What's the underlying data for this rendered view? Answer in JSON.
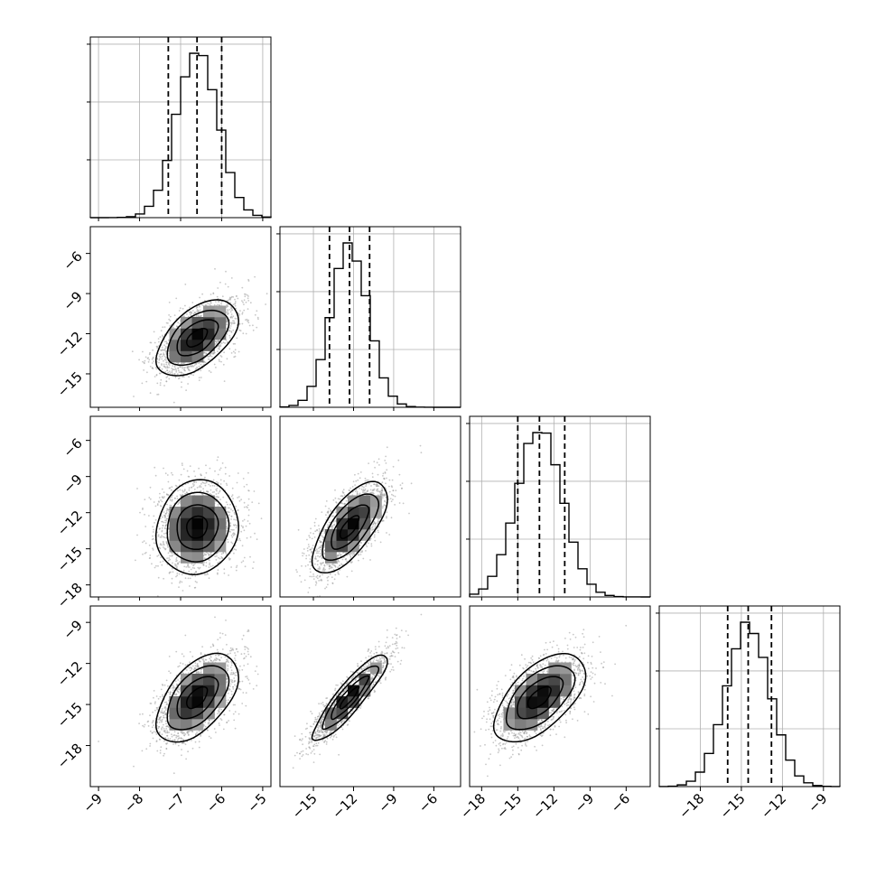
{
  "chart_data": {
    "type": "corner",
    "grid": true,
    "parameters": [
      {
        "range": [
          -9.2,
          -4.8
        ],
        "ticks": [
          -9,
          -8,
          -7,
          -6,
          -5
        ],
        "tick_labels": [
          "−9",
          "−8",
          "−7",
          "−6",
          "−5"
        ],
        "mean": -6.6,
        "sd": 0.5,
        "quantiles": [
          -7.3,
          -6.6,
          -6.0
        ]
      },
      {
        "range": [
          -17.5,
          -4.0
        ],
        "ticks": [
          -15,
          -12,
          -9,
          -6
        ],
        "tick_labels": [
          "−15",
          "−12",
          "−9",
          "−6"
        ],
        "mean": -12.3,
        "sd": 1.4,
        "quantiles": [
          -13.8,
          -12.3,
          -10.8
        ]
      },
      {
        "range": [
          -19.0,
          -4.0
        ],
        "ticks": [
          -18,
          -15,
          -12,
          -9,
          -6
        ],
        "tick_labels": [
          "−18",
          "−15",
          "−12",
          "−9",
          "−6"
        ],
        "mean": -13.2,
        "sd": 1.9,
        "quantiles": [
          -15.0,
          -13.2,
          -11.1
        ]
      },
      {
        "range": [
          -21.0,
          -7.8
        ],
        "ticks": [
          -18,
          -15,
          -12,
          -9
        ],
        "tick_labels": [
          "−18",
          "−15",
          "−12",
          "−9"
        ],
        "mean": -14.5,
        "sd": 1.6,
        "quantiles": [
          -16.0,
          -14.5,
          -12.8
        ]
      }
    ],
    "correlations": [
      [
        1,
        0.55,
        0.1,
        0.55
      ],
      [
        0.55,
        1,
        0.7,
        0.9
      ],
      [
        0.1,
        0.7,
        1,
        0.6
      ],
      [
        0.55,
        0.9,
        0.6,
        1
      ]
    ],
    "contour_levels_sigma": [
      0.5,
      1.0,
      1.5,
      2.0
    ],
    "histogram_bins": 20,
    "scatter_points_per_panel": 1800
  }
}
